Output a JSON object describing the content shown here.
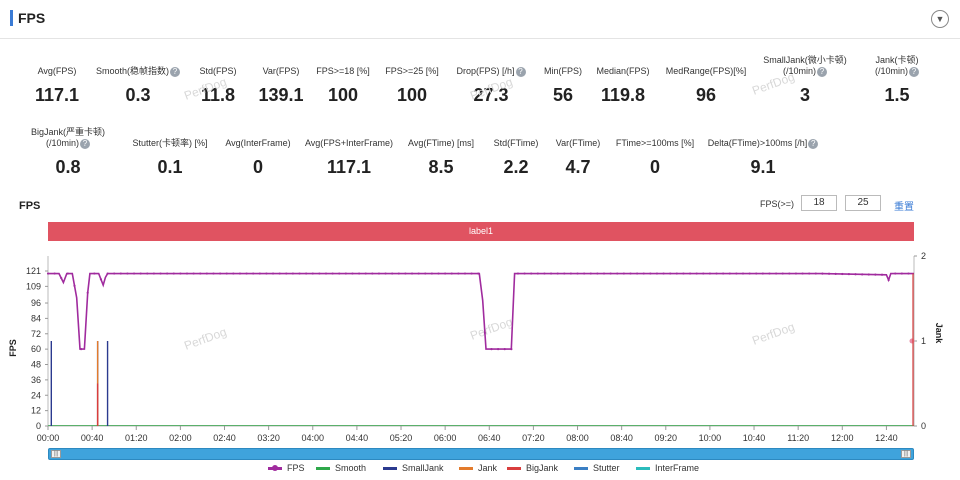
{
  "header": {
    "title": "FPS",
    "toggle_icon": "chevron-down-icon"
  },
  "stats_row1": [
    {
      "label": "Avg(FPS)",
      "value": "117.1",
      "help": false
    },
    {
      "label": "Smooth(稳帧指数)",
      "value": "0.3",
      "help": true
    },
    {
      "label": "Std(FPS)",
      "value": "11.8",
      "help": false
    },
    {
      "label": "Var(FPS)",
      "value": "139.1",
      "help": false
    },
    {
      "label": "FPS>=18 [%]",
      "value": "100",
      "help": false
    },
    {
      "label": "FPS>=25 [%]",
      "value": "100",
      "help": false
    },
    {
      "label": "Drop(FPS) [/h]",
      "value": "27.3",
      "help": true
    },
    {
      "label": "Min(FPS)",
      "value": "56",
      "help": false
    },
    {
      "label": "Median(FPS)",
      "value": "119.8",
      "help": false
    },
    {
      "label": "MedRange(FPS)[%]",
      "value": "96",
      "help": false
    },
    {
      "label": "SmallJank(微小卡顿)",
      "label2": "(/10min)",
      "value": "3",
      "help": true
    },
    {
      "label": "Jank(卡顿)",
      "label2": "(/10min)",
      "value": "1.5",
      "help": true
    }
  ],
  "stats_row2": [
    {
      "label": "BigJank(严重卡顿)",
      "label2": "(/10min)",
      "value": "0.8",
      "help": true
    },
    {
      "label": "Stutter(卡顿率) [%]",
      "value": "0.1",
      "help": false
    },
    {
      "label": "Avg(InterFrame)",
      "value": "0",
      "help": false
    },
    {
      "label": "Avg(FPS+InterFrame)",
      "value": "117.1",
      "help": false
    },
    {
      "label": "Avg(FTime) [ms]",
      "value": "8.5",
      "help": false
    },
    {
      "label": "Std(FTime)",
      "value": "2.2",
      "help": false
    },
    {
      "label": "Var(FTime)",
      "value": "4.7",
      "help": false
    },
    {
      "label": "FTime>=100ms [%]",
      "value": "0",
      "help": false
    },
    {
      "label": "Delta(FTime)>100ms [/h]",
      "value": "9.1",
      "help": true
    }
  ],
  "chart_header": {
    "title": "FPS",
    "threshold_label": "FPS(>=)",
    "threshold1": "18",
    "threshold2": "25",
    "reset_label": "重置"
  },
  "label_band": "label1",
  "watermark": "PerfDog",
  "chart_data": {
    "type": "line",
    "xlabel": "",
    "ylabel": "FPS",
    "y2label": "Jank",
    "x_ticks": [
      "00:00",
      "00:40",
      "01:20",
      "02:00",
      "02:40",
      "03:20",
      "04:00",
      "04:40",
      "05:20",
      "06:00",
      "06:40",
      "07:20",
      "08:00",
      "08:40",
      "09:20",
      "10:00",
      "10:40",
      "11:20",
      "12:00",
      "12:40"
    ],
    "y_ticks": [
      "0",
      "12",
      "24",
      "36",
      "48",
      "60",
      "72",
      "84",
      "96",
      "109",
      "121"
    ],
    "y2_ticks": [
      "0",
      "1",
      "2"
    ],
    "ylim": [
      0,
      121
    ],
    "y2lim": [
      0,
      2
    ],
    "xlim_seconds": [
      0,
      785
    ],
    "series": [
      {
        "name": "FPS",
        "color": "#a02b9e",
        "points": [
          [
            0,
            119
          ],
          [
            10,
            119
          ],
          [
            14,
            112
          ],
          [
            17,
            119
          ],
          [
            22,
            119
          ],
          [
            26,
            100
          ],
          [
            29,
            60
          ],
          [
            33,
            60
          ],
          [
            36,
            104
          ],
          [
            38,
            119
          ],
          [
            46,
            119
          ],
          [
            50,
            110
          ],
          [
            52,
            116
          ],
          [
            54,
            119
          ],
          [
            120,
            119
          ],
          [
            200,
            119
          ],
          [
            300,
            119
          ],
          [
            380,
            119
          ],
          [
            391,
            119
          ],
          [
            394,
            98
          ],
          [
            397,
            60
          ],
          [
            420,
            60
          ],
          [
            423,
            119
          ],
          [
            500,
            119
          ],
          [
            600,
            119
          ],
          [
            700,
            119
          ],
          [
            760,
            118
          ],
          [
            762,
            114
          ],
          [
            764,
            119
          ],
          [
            785,
            119
          ]
        ]
      },
      {
        "name": "Smooth",
        "color": "#2ea84a",
        "points": []
      },
      {
        "name": "SmallJank",
        "color": "#2b3a8f",
        "spikes": [
          [
            3,
            1
          ],
          [
            45,
            1
          ],
          [
            54,
            1
          ]
        ]
      },
      {
        "name": "Jank",
        "color": "#e37b2c",
        "spikes": [
          [
            45,
            1
          ]
        ]
      },
      {
        "name": "BigJank",
        "color": "#d93d3d",
        "spikes": [
          [
            45,
            0.5
          ]
        ]
      },
      {
        "name": "Stutter",
        "color": "#3b7fc4",
        "points": []
      },
      {
        "name": "InterFrame",
        "color": "#2bbcbc",
        "points": []
      }
    ]
  }
}
